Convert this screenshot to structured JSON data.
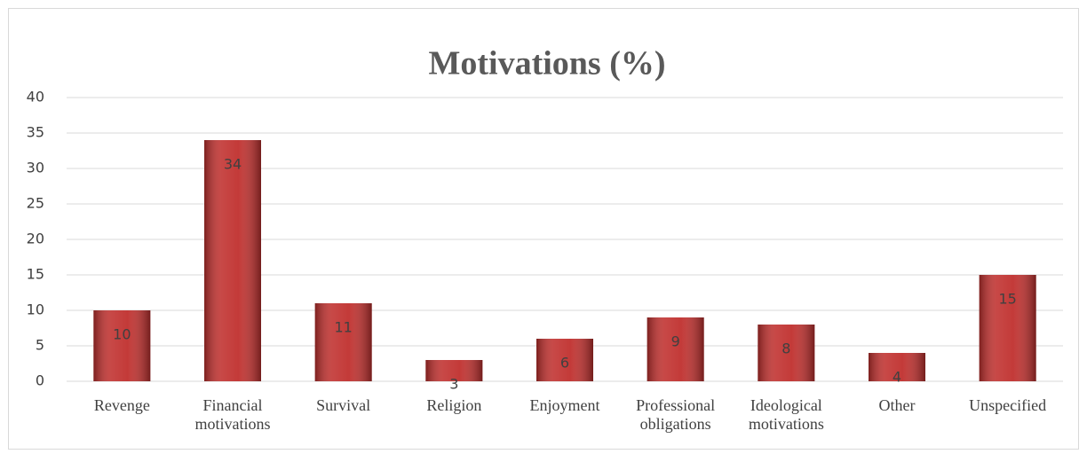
{
  "chart_data": {
    "type": "bar",
    "title": "Motivations (%)",
    "categories": [
      "Revenge",
      "Financial motivations",
      "Survival",
      "Religion",
      "Enjoyment",
      "Professional obligations",
      "Ideological motivations",
      "Other",
      "Unspecified"
    ],
    "values": [
      10,
      34,
      11,
      3,
      6,
      9,
      8,
      4,
      15
    ],
    "color": "#c0302e",
    "ylim": [
      0,
      40
    ],
    "yticks": [
      0,
      5,
      10,
      15,
      20,
      25,
      30,
      35,
      40
    ],
    "grid": true
  }
}
